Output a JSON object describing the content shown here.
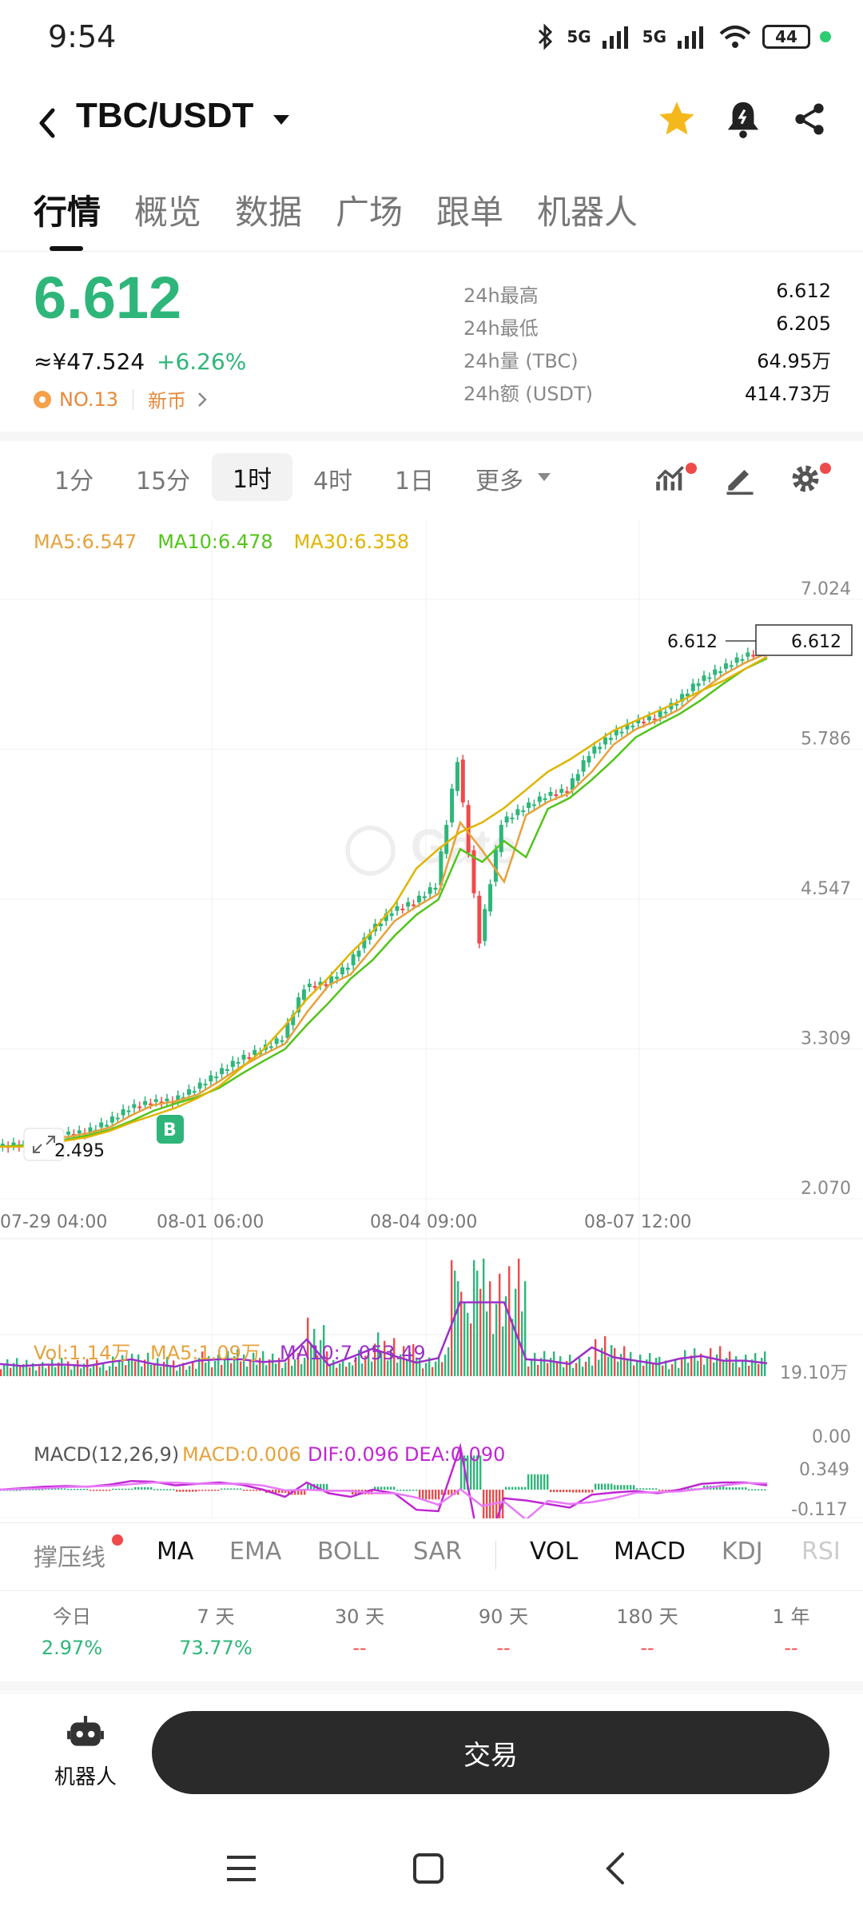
{
  "status_bar": {
    "time": "9:54",
    "battery": "44",
    "net1": "5G",
    "net2": "5G"
  },
  "header": {
    "title": "TBC/USDT"
  },
  "tabs": [
    {
      "label": "行情"
    },
    {
      "label": "概览"
    },
    {
      "label": "数据"
    },
    {
      "label": "广场"
    },
    {
      "label": "跟单"
    },
    {
      "label": "机器人"
    }
  ],
  "price": {
    "last": "6.612",
    "cny": "≈¥47.524",
    "change": "+6.26%",
    "rank": "NO.13",
    "tag": "新币"
  },
  "stats": [
    {
      "k": "24h最高",
      "v": "6.612"
    },
    {
      "k": "24h最低",
      "v": "6.205"
    },
    {
      "k": "24h量 (TBC)",
      "v": "64.95万"
    },
    {
      "k": "24h额 (USDT)",
      "v": "414.73万"
    }
  ],
  "timeframes": [
    "1分",
    "15分",
    "1时",
    "4时",
    "1日",
    "更多"
  ],
  "ma_legend": {
    "ma5": "MA5:6.547",
    "ma10": "MA10:6.478",
    "ma30": "MA30:6.358"
  },
  "vol_legend": {
    "vol": "Vol:1.14万",
    "ma5": "MA5:1.09万",
    "ma10": "MA10:7,053.49"
  },
  "macd_legend": {
    "name": "MACD(12,26,9)",
    "macd": "MACD:0.006",
    "dif": "DIF:0.096",
    "dea": "DEA:0.090"
  },
  "indicators": [
    "撑压线",
    "MA",
    "EMA",
    "BOLL",
    "SAR",
    "VOL",
    "MACD",
    "KDJ",
    "RSI"
  ],
  "performance": [
    {
      "k": "今日",
      "v": "2.97%"
    },
    {
      "k": "7 天",
      "v": "73.77%"
    },
    {
      "k": "30 天",
      "v": "--"
    },
    {
      "k": "90 天",
      "v": "--"
    },
    {
      "k": "180 天",
      "v": "--"
    },
    {
      "k": "1 年",
      "v": "--"
    }
  ],
  "bottom": {
    "robot_label": "机器人",
    "trade_label": "交易"
  },
  "colors": {
    "up": "#2eb67a",
    "down": "#ef4a4a",
    "ma5": "#e6a23c",
    "ma10": "#52c41a",
    "ma30": "#e0b400",
    "macd_dif": "#c026d3"
  },
  "chart_data": {
    "type": "line",
    "x_ticks": [
      "07-29 04:00",
      "08-01 06:00",
      "08-04 09:00",
      "08-07 12:00"
    ],
    "y_ticks": [
      "7.024",
      "5.786",
      "4.547",
      "3.309",
      "2.070"
    ],
    "ylim": [
      2.07,
      7.024
    ],
    "last_price_label": "6.612",
    "low_marker_label": "2.495",
    "buy_marker": "B",
    "vol_ticks": [
      "19.10万",
      "0.00"
    ],
    "macd_ticks": [
      "0.349",
      "-0.117"
    ],
    "price_path": [
      2.5,
      2.52,
      2.56,
      2.6,
      2.62,
      2.7,
      2.82,
      2.87,
      2.88,
      2.98,
      3.1,
      3.22,
      3.3,
      3.4,
      3.82,
      3.85,
      4.0,
      4.28,
      4.45,
      4.52,
      4.66,
      5.7,
      4.2,
      5.18,
      5.3,
      5.4,
      5.45,
      5.75,
      5.9,
      6.0,
      6.05,
      6.18,
      6.35,
      6.45,
      6.55,
      6.61
    ],
    "ma30_path": [
      2.5,
      2.5,
      2.52,
      2.55,
      2.58,
      2.63,
      2.7,
      2.76,
      2.82,
      2.9,
      3.0,
      3.15,
      3.3,
      3.5,
      3.72,
      3.9,
      4.1,
      4.28,
      4.5,
      4.8,
      4.96,
      5.1,
      5.18,
      5.3,
      5.45,
      5.6,
      5.7,
      5.82,
      5.94,
      6.02,
      6.1,
      6.18,
      6.27,
      6.35,
      6.45,
      6.55
    ]
  }
}
